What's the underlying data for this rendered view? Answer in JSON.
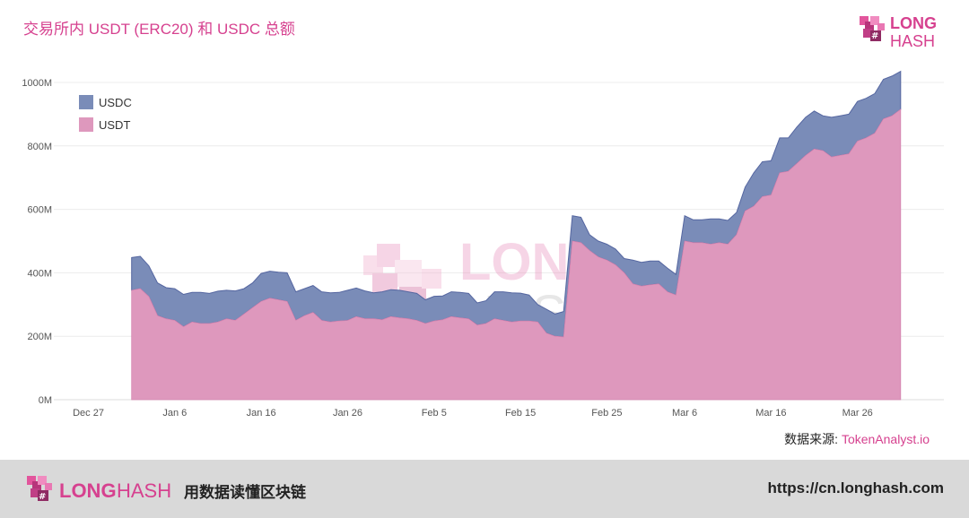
{
  "header": {
    "title": "交易所内 USDT (ERC20) 和 USDC 总额",
    "brand_top": "LONG",
    "brand_bottom": "HASH"
  },
  "watermark": {
    "top": "LONG",
    "bottom": "HASH"
  },
  "source": {
    "label": "数据来源: ",
    "value": "TokenAnalyst.io"
  },
  "footer": {
    "brand_long": "LONG",
    "brand_hash": "HASH",
    "tagline": "用数据读懂区块链",
    "url": "https://cn.longhash.com"
  },
  "colors": {
    "usdt": "#de98bd",
    "usdc": "#7a8cb8",
    "usdc_line": "#5566a0",
    "accent": "#d6418f"
  },
  "chart_data": {
    "type": "area",
    "stacked": true,
    "title": "交易所内 USDT (ERC20) 和 USDC 总额",
    "xlabel": "",
    "ylabel": "",
    "ylim": [
      0,
      1000
    ],
    "y_ticks": [
      0,
      200,
      400,
      600,
      800,
      1000
    ],
    "y_tick_labels": [
      "0M",
      "200M",
      "400M",
      "600M",
      "800M",
      "1000M"
    ],
    "x_ticks": [
      "Dec 27",
      "Jan 6",
      "Jan 16",
      "Jan 26",
      "Feb 5",
      "Feb 15",
      "Feb 25",
      "Mar 6",
      "Mar 16",
      "Mar 26"
    ],
    "x_tick_days": [
      0,
      10,
      20,
      30,
      40,
      50,
      60,
      69,
      79,
      89
    ],
    "xlim_days": [
      -4,
      99
    ],
    "grid": "horizontal",
    "legend": "top-left",
    "series": [
      {
        "name": "USDT",
        "x_days": [
          5,
          6,
          7,
          8,
          9,
          10,
          11,
          12,
          13,
          14,
          15,
          16,
          17,
          18,
          19,
          20,
          21,
          22,
          23,
          24,
          25,
          26,
          27,
          28,
          29,
          30,
          31,
          32,
          33,
          34,
          35,
          36,
          37,
          38,
          39,
          40,
          41,
          42,
          43,
          44,
          45,
          46,
          47,
          48,
          49,
          50,
          51,
          52,
          53,
          54,
          55,
          56,
          57,
          58,
          59,
          60,
          61,
          62,
          63,
          64,
          65,
          66,
          67,
          68,
          69,
          70,
          71,
          72,
          73,
          74,
          75,
          76,
          77,
          78,
          79,
          80,
          81,
          82,
          83,
          84,
          85,
          86,
          87,
          88,
          89,
          90,
          91,
          92,
          93,
          94
        ],
        "values": [
          345,
          350,
          325,
          265,
          255,
          250,
          230,
          245,
          240,
          240,
          245,
          255,
          250,
          270,
          290,
          310,
          320,
          315,
          310,
          250,
          265,
          275,
          250,
          245,
          248,
          250,
          262,
          255,
          255,
          252,
          262,
          258,
          255,
          250,
          240,
          248,
          252,
          262,
          258,
          255,
          235,
          240,
          255,
          250,
          245,
          248,
          248,
          245,
          210,
          200,
          198,
          500,
          495,
          470,
          450,
          440,
          425,
          400,
          365,
          358,
          362,
          365,
          340,
          330,
          500,
          495,
          495,
          490,
          495,
          490,
          520,
          595,
          610,
          640,
          645,
          715,
          720,
          745,
          770,
          790,
          785,
          765,
          770,
          775,
          815,
          825,
          840,
          885,
          895,
          915
        ]
      },
      {
        "name": "USDC",
        "x_days": [
          5,
          6,
          7,
          8,
          9,
          10,
          11,
          12,
          13,
          14,
          15,
          16,
          17,
          18,
          19,
          20,
          21,
          22,
          23,
          24,
          25,
          26,
          27,
          28,
          29,
          30,
          31,
          32,
          33,
          34,
          35,
          36,
          37,
          38,
          39,
          40,
          41,
          42,
          43,
          44,
          45,
          46,
          47,
          48,
          49,
          50,
          51,
          52,
          53,
          54,
          55,
          56,
          57,
          58,
          59,
          60,
          61,
          62,
          63,
          64,
          65,
          66,
          67,
          68,
          69,
          70,
          71,
          72,
          73,
          74,
          75,
          76,
          77,
          78,
          79,
          80,
          81,
          82,
          83,
          84,
          85,
          86,
          87,
          88,
          89,
          90,
          91,
          92,
          93,
          94
        ],
        "values": [
          103,
          102,
          97,
          103,
          98,
          100,
          102,
          93,
          98,
          95,
          97,
          90,
          93,
          80,
          78,
          88,
          85,
          87,
          90,
          90,
          85,
          85,
          90,
          92,
          90,
          95,
          90,
          88,
          82,
          88,
          85,
          87,
          85,
          85,
          75,
          78,
          75,
          78,
          80,
          80,
          70,
          72,
          85,
          90,
          92,
          88,
          82,
          55,
          75,
          70,
          80,
          80,
          80,
          50,
          50,
          50,
          50,
          45,
          75,
          75,
          75,
          72,
          75,
          65,
          80,
          72,
          72,
          80,
          75,
          75,
          70,
          75,
          105,
          110,
          108,
          110,
          105,
          115,
          120,
          120,
          110,
          125,
          125,
          125,
          125,
          125,
          125,
          125,
          125,
          120
        ]
      }
    ]
  }
}
